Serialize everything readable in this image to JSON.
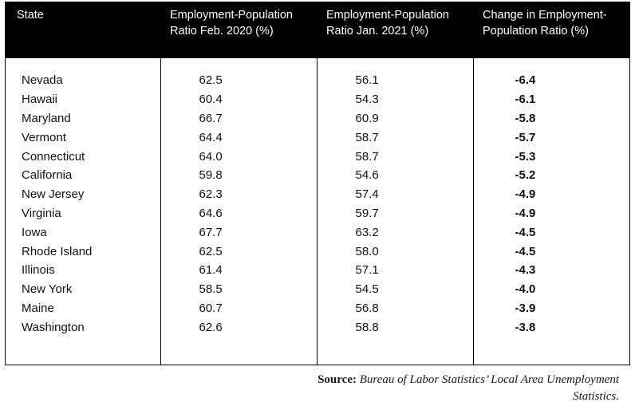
{
  "table": {
    "headers": [
      "State",
      "Employment-Population Ratio Feb. 2020 (%)",
      "Employment-Population Ratio Jan. 2021 (%)",
      "Change in Employment-Population Ratio (%)"
    ],
    "rows": [
      {
        "state": "Nevada",
        "feb2020": "62.5",
        "jan2021": "56.1",
        "change": "-6.4"
      },
      {
        "state": "Hawaii",
        "feb2020": "60.4",
        "jan2021": "54.3",
        "change": "-6.1"
      },
      {
        "state": "Maryland",
        "feb2020": "66.7",
        "jan2021": "60.9",
        "change": "-5.8"
      },
      {
        "state": "Vermont",
        "feb2020": "64.4",
        "jan2021": "58.7",
        "change": "-5.7"
      },
      {
        "state": "Connecticut",
        "feb2020": "64.0",
        "jan2021": "58.7",
        "change": "-5.3"
      },
      {
        "state": "California",
        "feb2020": "59.8",
        "jan2021": "54.6",
        "change": "-5.2"
      },
      {
        "state": "New Jersey",
        "feb2020": "62.3",
        "jan2021": "57.4",
        "change": "-4.9"
      },
      {
        "state": "Virginia",
        "feb2020": "64.6",
        "jan2021": "59.7",
        "change": "-4.9"
      },
      {
        "state": "Iowa",
        "feb2020": "67.7",
        "jan2021": "63.2",
        "change": "-4.5"
      },
      {
        "state": "Rhode Island",
        "feb2020": "62.5",
        "jan2021": "58.0",
        "change": "-4.5"
      },
      {
        "state": "Illinois",
        "feb2020": "61.4",
        "jan2021": "57.1",
        "change": "-4.3"
      },
      {
        "state": "New York",
        "feb2020": "58.5",
        "jan2021": "54.5",
        "change": "-4.0"
      },
      {
        "state": "Maine",
        "feb2020": "60.7",
        "jan2021": "56.8",
        "change": "-3.9"
      },
      {
        "state": "Washington",
        "feb2020": "62.6",
        "jan2021": "58.8",
        "change": "-3.8"
      }
    ]
  },
  "source": {
    "label": "Source:",
    "text": "Bureau of Labor Statistics’ Local Area Unemployment Statistics."
  }
}
